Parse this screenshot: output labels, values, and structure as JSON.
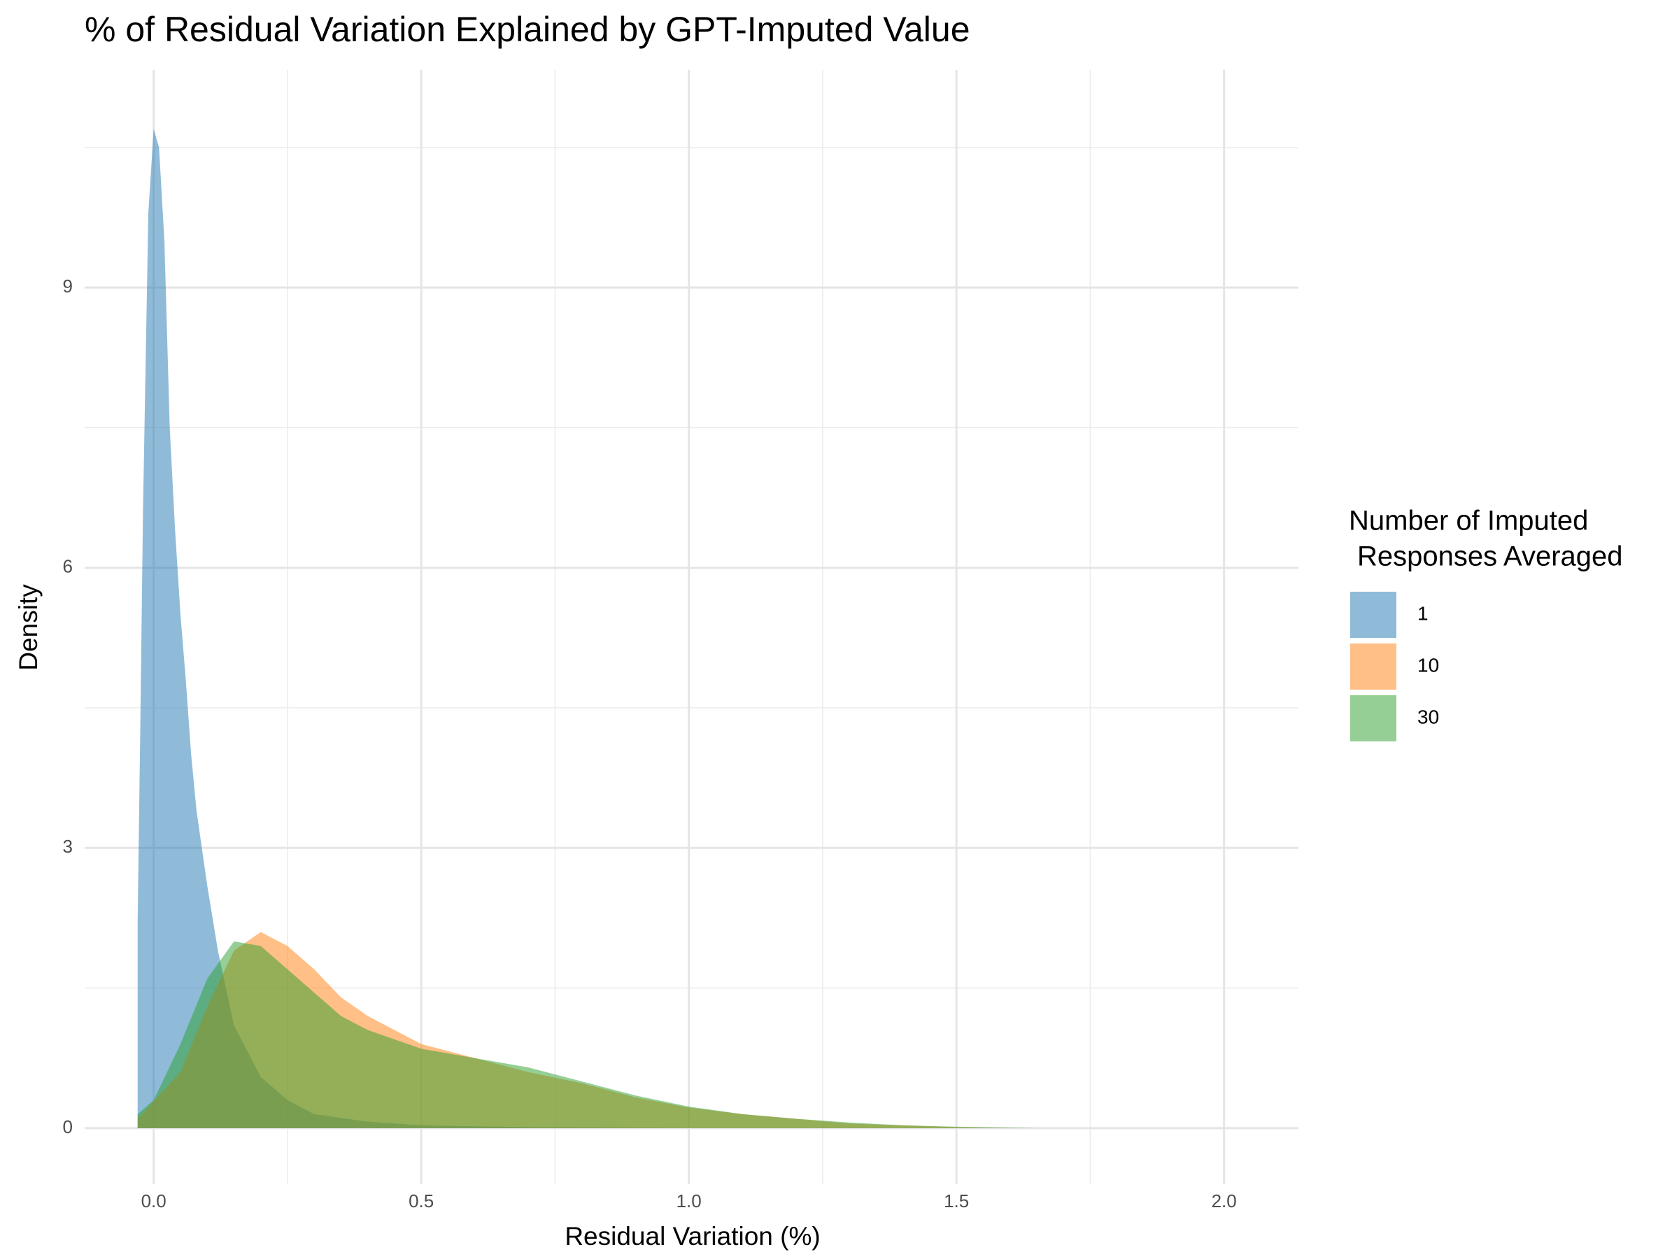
{
  "chart_data": {
    "type": "density",
    "title": "% of Residual Variation Explained by GPT-Imputed Value",
    "x_label": "Residual Variation (%)",
    "y_label": "Density",
    "legend_title": [
      "Number of Imputed",
      "Responses Averaged"
    ],
    "legend_position": "right",
    "grid": true,
    "xlim": [
      -0.129,
      2.139
    ],
    "ylim": [
      -0.6,
      11.33
    ],
    "xticks": [
      {
        "value": 0,
        "label": "0.0"
      },
      0.5,
      {
        "value": 1,
        "label": "1.0"
      },
      1.5,
      {
        "value": 2,
        "label": "2.0"
      }
    ],
    "yticks": [
      0,
      3,
      6,
      9
    ],
    "series": [
      {
        "name": "1",
        "color": "#1f77b4",
        "x": [
          -0.03,
          -0.025,
          -0.02,
          -0.01,
          0,
          0.01,
          0.02,
          0.03,
          0.04,
          0.05,
          0.06,
          0.07,
          0.08,
          0.1,
          0.12,
          0.15,
          0.2,
          0.25,
          0.3,
          0.4,
          0.5,
          0.7,
          1.0
        ],
        "values": [
          2.2,
          4.3,
          6.6,
          9.8,
          10.7,
          10.5,
          9.5,
          7.5,
          6.4,
          5.5,
          4.8,
          4.0,
          3.4,
          2.6,
          1.9,
          1.1,
          0.55,
          0.3,
          0.15,
          0.07,
          0.03,
          0.01,
          0
        ]
      },
      {
        "name": "10",
        "color": "#ff7f0e",
        "x": [
          -0.03,
          0.05,
          0.1,
          0.15,
          0.2,
          0.25,
          0.3,
          0.35,
          0.4,
          0.45,
          0.5,
          0.6,
          0.7,
          0.8,
          0.9,
          1.0,
          1.1,
          1.2,
          1.3,
          1.4,
          1.5,
          1.6
        ],
        "values": [
          0.1,
          0.6,
          1.3,
          1.9,
          2.1,
          1.95,
          1.7,
          1.4,
          1.2,
          1.05,
          0.9,
          0.75,
          0.6,
          0.48,
          0.33,
          0.22,
          0.15,
          0.1,
          0.05,
          0.03,
          0.01,
          0
        ]
      },
      {
        "name": "30",
        "color": "#2ca02c",
        "x": [
          -0.03,
          0,
          0.05,
          0.1,
          0.15,
          0.2,
          0.25,
          0.3,
          0.35,
          0.4,
          0.45,
          0.5,
          0.6,
          0.7,
          0.8,
          0.9,
          1.0,
          1.1,
          1.2,
          1.3,
          1.4,
          1.5,
          1.65
        ],
        "values": [
          0.15,
          0.3,
          0.9,
          1.6,
          2.0,
          1.95,
          1.7,
          1.45,
          1.2,
          1.05,
          0.95,
          0.85,
          0.75,
          0.65,
          0.5,
          0.35,
          0.23,
          0.15,
          0.1,
          0.06,
          0.03,
          0.015,
          0
        ]
      }
    ]
  }
}
